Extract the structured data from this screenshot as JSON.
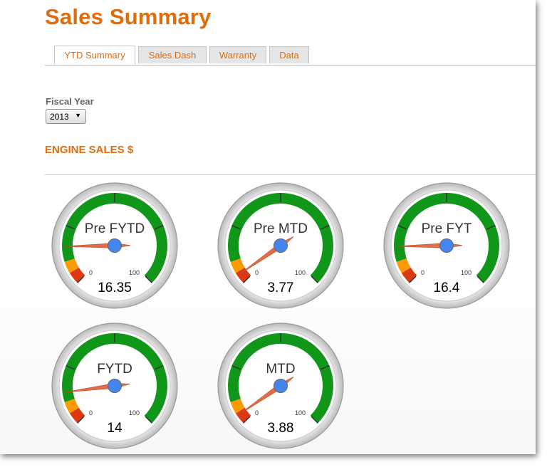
{
  "page": {
    "title": "Sales Summary"
  },
  "tabs": [
    {
      "label": "YTD Summary",
      "active": true
    },
    {
      "label": "Sales Dash",
      "active": false
    },
    {
      "label": "Warranty",
      "active": false
    },
    {
      "label": "Data",
      "active": false
    }
  ],
  "filters": {
    "fiscal_year_label": "Fiscal Year",
    "fiscal_year_value": "2013"
  },
  "section": {
    "title": "ENGINE SALES $"
  },
  "gauges": [
    {
      "label": "Pre FYTD",
      "value": 16.35,
      "value_text": "16.35",
      "min_label": "0",
      "max_label": "100"
    },
    {
      "label": "Pre MTD",
      "value": 3.77,
      "value_text": "3.77",
      "min_label": "0",
      "max_label": "100"
    },
    {
      "label": "Pre FYT",
      "value": 16.4,
      "value_text": "16.4",
      "min_label": "0",
      "max_label": "100"
    },
    {
      "label": "FYTD",
      "value": 14,
      "value_text": "14",
      "min_label": "0",
      "max_label": "100"
    },
    {
      "label": "MTD",
      "value": 3.88,
      "value_text": "3.88",
      "min_label": "0",
      "max_label": "100"
    }
  ],
  "colors": {
    "accent": "#e06c0a",
    "gauge_green": "#109618",
    "gauge_yellow": "#ff9900",
    "gauge_red": "#dc3912",
    "needle": "#e0623a",
    "needle_hub": "#4684ee"
  }
}
